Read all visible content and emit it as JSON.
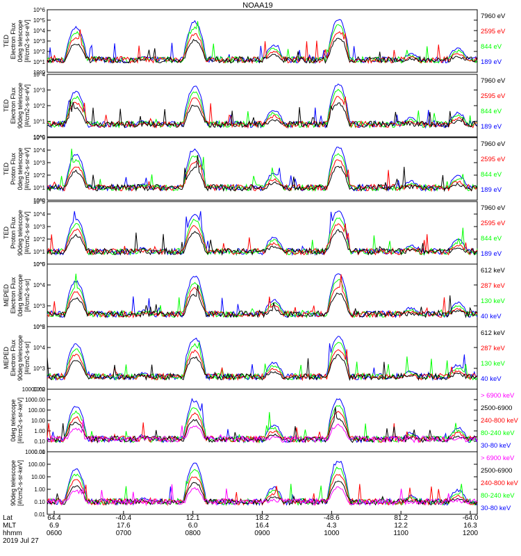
{
  "title": "NOAA19",
  "date_label": "2019 Jul 27",
  "colors": {
    "black": "#000000",
    "red": "#ff0000",
    "green": "#00ff00",
    "blue": "#0000ff",
    "magenta": "#ff00ff"
  },
  "x_axis": {
    "row_labels": [
      "Lat",
      "MLT",
      "hhmm"
    ],
    "lat": [
      "64.4",
      "-40.4",
      "12.1",
      "18.2",
      "-48.6",
      "81.2",
      "-64.0"
    ],
    "mlt": [
      "6.9",
      "17.6",
      "6.0",
      "16.4",
      "4.3",
      "12.2",
      "16.3"
    ],
    "hhmm": [
      "0600",
      "0700",
      "0800",
      "0900",
      "1000",
      "1100",
      "1200"
    ]
  },
  "chart_data": [
    {
      "type": "line",
      "ylabel": [
        "TED",
        "Electron Flux",
        "0deg telescope",
        "[#/cm2-s-sr-eV]"
      ],
      "ytick_labels": [
        "10^0",
        "10^1",
        "10^2",
        "10^3",
        "10^4",
        "10^5",
        "10^6"
      ],
      "ylim": [
        1,
        1000000
      ],
      "legend": [
        "7960 eV",
        "2595 eV",
        "844 eV",
        "189 eV"
      ],
      "legend_colors": [
        "#000000",
        "#ff0000",
        "#00ff00",
        "#0000ff"
      ]
    },
    {
      "type": "line",
      "ylabel": [
        "TED",
        "Electron Flux",
        "90deg telescope",
        "[#/cm2-s-sr-eV]"
      ],
      "ytick_labels": [
        "10^0",
        "10^1",
        "10^2",
        "10^3",
        "10^4"
      ],
      "ylim": [
        1,
        10000
      ],
      "legend": [
        "7960 eV",
        "2595 eV",
        "844 eV",
        "189 eV"
      ],
      "legend_colors": [
        "#000000",
        "#ff0000",
        "#00ff00",
        "#0000ff"
      ]
    },
    {
      "type": "line",
      "ylabel": [
        "TED",
        "Proton Flux",
        "0deg telescope",
        "[#/cm2-s-sr-eV]"
      ],
      "ytick_labels": [
        "10^0",
        "10^1",
        "10^2",
        "10^3",
        "10^4",
        "10^5"
      ],
      "ylim": [
        1,
        100000
      ],
      "legend": [
        "7960 eV",
        "2595 eV",
        "844 eV",
        "189 eV"
      ],
      "legend_colors": [
        "#000000",
        "#ff0000",
        "#00ff00",
        "#0000ff"
      ]
    },
    {
      "type": "line",
      "ylabel": [
        "TED",
        "Proton Flux",
        "90deg telescope",
        "[#/cm2-s-sr-eV]"
      ],
      "ytick_labels": [
        "10^0",
        "10^1",
        "10^2",
        "10^3",
        "10^4",
        "10^5"
      ],
      "ylim": [
        1,
        100000
      ],
      "legend": [
        "7960 eV",
        "2595 eV",
        "844 eV",
        "189 eV"
      ],
      "legend_colors": [
        "#000000",
        "#ff0000",
        "#00ff00",
        "#0000ff"
      ]
    },
    {
      "type": "line",
      "ylabel": [
        "MEPED",
        "Electron Flux",
        "0deg telescope",
        "[#/cm2-s-sr]"
      ],
      "ytick_labels": [
        "10^2",
        "10^3",
        "10^4",
        "10^5"
      ],
      "ylim": [
        100,
        100000
      ],
      "legend": [
        "612 keV",
        "287 keV",
        "130 keV",
        "40 keV"
      ],
      "legend_colors": [
        "#000000",
        "#ff0000",
        "#00ff00",
        "#0000ff"
      ]
    },
    {
      "type": "line",
      "ylabel": [
        "MEPED",
        "Electron Flux",
        "90deg telescope",
        "[#/cm2-s-sr]"
      ],
      "ytick_labels": [
        "10^2",
        "10^3",
        "10^4",
        "10^5"
      ],
      "ylim": [
        100,
        100000
      ],
      "legend": [
        "612 keV",
        "287 keV",
        "130 keV",
        "40 keV"
      ],
      "legend_colors": [
        "#000000",
        "#ff0000",
        "#00ff00",
        "#0000ff"
      ]
    },
    {
      "type": "line",
      "ylabel": [
        "0deg telescope",
        "[#/cm2-s-sr-keV]"
      ],
      "ytick_labels": [
        "0.01",
        "0.10",
        "1.00",
        "10.00",
        "100.00",
        "1000.00",
        "10000.00"
      ],
      "ylim": [
        0.01,
        10000
      ],
      "legend": [
        "> 6900 keV",
        "2500-6900",
        "240-800 keV",
        "80-240 keV",
        "30-80 keV"
      ],
      "legend_colors": [
        "#ff00ff",
        "#000000",
        "#ff0000",
        "#00ff00",
        "#0000ff"
      ]
    },
    {
      "type": "line",
      "ylabel": [
        "90deg telescope",
        "[#/cm2-s-sr-keV]"
      ],
      "ytick_labels": [
        "0.01",
        "0.10",
        "1.00",
        "10.00",
        "100.00",
        "1000.00"
      ],
      "ylim": [
        0.01,
        1000
      ],
      "legend": [
        "> 6900 keV",
        "2500-6900",
        "240-800 keV",
        "80-240 keV",
        "30-80 keV"
      ],
      "legend_colors": [
        "#ff00ff",
        "#000000",
        "#ff0000",
        "#00ff00",
        "#0000ff"
      ]
    }
  ]
}
